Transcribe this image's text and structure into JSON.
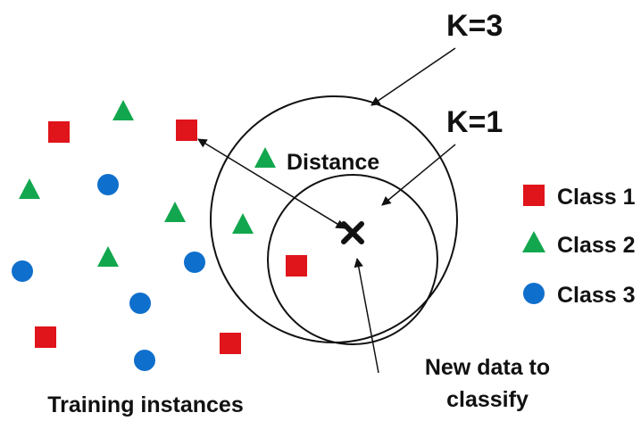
{
  "labels": {
    "k3": "K=3",
    "k1": "K=1",
    "distance": "Distance",
    "new_data_line1": "New data to",
    "new_data_line2": "classify",
    "training": "Training instances"
  },
  "legend": [
    {
      "shape": "square",
      "label": "Class 1",
      "color": "#e0141b"
    },
    {
      "shape": "triangle",
      "label": "Class 2",
      "color": "#12a74e"
    },
    {
      "shape": "circle",
      "label": "Class 3",
      "color": "#0f6fcc"
    }
  ],
  "colors": {
    "class1": "#e0141b",
    "class2": "#12a74e",
    "class3": "#0f6fcc",
    "outline": "#111111"
  },
  "icons": {
    "query_point": "x-mark-icon"
  }
}
